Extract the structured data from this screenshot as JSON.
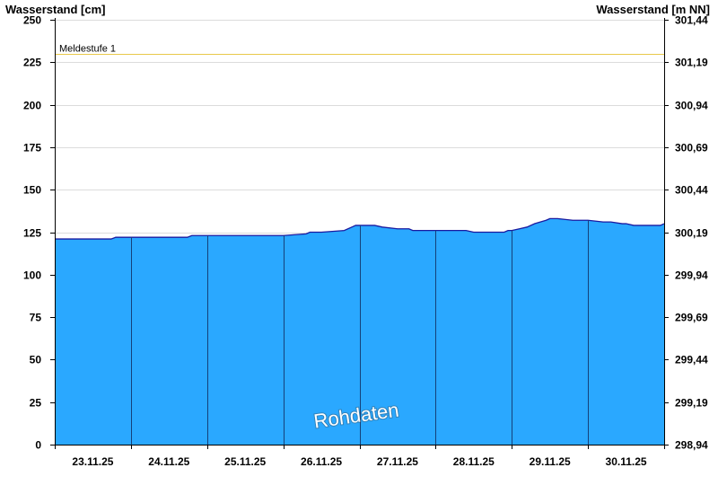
{
  "chart_data": {
    "type": "area",
    "left_axis_title": "Wasserstand [cm]",
    "right_axis_title": "Wasserstand [m NN]",
    "y_left": {
      "min": 0,
      "max": 250,
      "ticks": [
        0,
        25,
        50,
        75,
        100,
        125,
        150,
        175,
        200,
        225,
        250
      ]
    },
    "y_right": {
      "ticks": [
        "298,94",
        "299,19",
        "299,44",
        "299,69",
        "299,94",
        "300,19",
        "300,44",
        "300,69",
        "300,94",
        "301,19",
        "301,44"
      ]
    },
    "x_range_days": [
      0,
      8
    ],
    "x_categories": [
      "23.11.25",
      "24.11.25",
      "25.11.25",
      "26.11.25",
      "27.11.25",
      "28.11.25",
      "29.11.25",
      "30.11.25"
    ],
    "grid": true,
    "threshold": {
      "label": "Meldestufe 1",
      "value": 230,
      "color": "#e8c84a"
    },
    "series": [
      {
        "fill_color": "#2aa8ff",
        "line_color": "#1a1aa0",
        "x": [
          0,
          0.1,
          0.5,
          0.74,
          0.8,
          1.0,
          1.5,
          1.74,
          1.8,
          2.0,
          2.5,
          2.9,
          2.95,
          3.0,
          3.3,
          3.35,
          3.5,
          3.8,
          3.9,
          3.95,
          4.0,
          4.2,
          4.3,
          4.5,
          4.65,
          4.7,
          5.0,
          5.3,
          5.4,
          5.5,
          5.9,
          5.95,
          6.0,
          6.1,
          6.2,
          6.3,
          6.45,
          6.5,
          6.6,
          6.8,
          6.85,
          7.0,
          7.2,
          7.3,
          7.45,
          7.5,
          7.6,
          7.9,
          7.95,
          8.0
        ],
        "y": [
          121,
          121,
          121,
          121,
          122,
          122,
          122,
          122,
          123,
          123,
          123,
          123,
          123,
          123,
          124,
          125,
          125,
          126,
          128,
          129,
          129,
          129,
          128,
          127,
          127,
          126,
          126,
          126,
          126,
          125,
          125,
          126,
          126,
          127,
          128,
          130,
          132,
          133,
          133,
          132,
          132,
          132,
          131,
          131,
          130,
          130,
          129,
          129,
          129,
          130
        ]
      }
    ],
    "watermark": "Rohdaten"
  }
}
